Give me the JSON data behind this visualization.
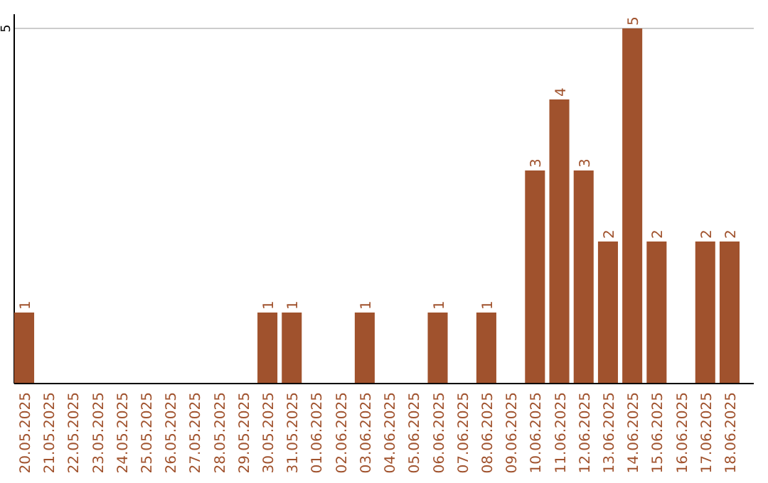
{
  "chart_data": {
    "type": "bar",
    "categories": [
      "20.05.2025",
      "21.05.2025",
      "22.05.2025",
      "23.05.2025",
      "24.05.2025",
      "25.05.2025",
      "26.05.2025",
      "27.05.2025",
      "28.05.2025",
      "29.05.2025",
      "30.05.2025",
      "31.05.2025",
      "01.06.2025",
      "02.06.2025",
      "03.06.2025",
      "04.06.2025",
      "05.06.2025",
      "06.06.2025",
      "07.06.2025",
      "08.06.2025",
      "09.06.2025",
      "10.06.2025",
      "11.06.2025",
      "12.06.2025",
      "13.06.2025",
      "14.06.2025",
      "15.06.2025",
      "16.06.2025",
      "17.06.2025",
      "18.06.2025"
    ],
    "values": [
      1,
      null,
      null,
      null,
      null,
      null,
      null,
      null,
      null,
      null,
      1,
      1,
      null,
      null,
      1,
      null,
      null,
      1,
      null,
      1,
      null,
      3,
      4,
      3,
      2,
      5,
      2,
      null,
      2,
      2
    ],
    "color": "#a0522d",
    "ylim": [
      0,
      5.2
    ],
    "yticks": [
      5
    ],
    "grid": "y",
    "data_labels": true
  }
}
